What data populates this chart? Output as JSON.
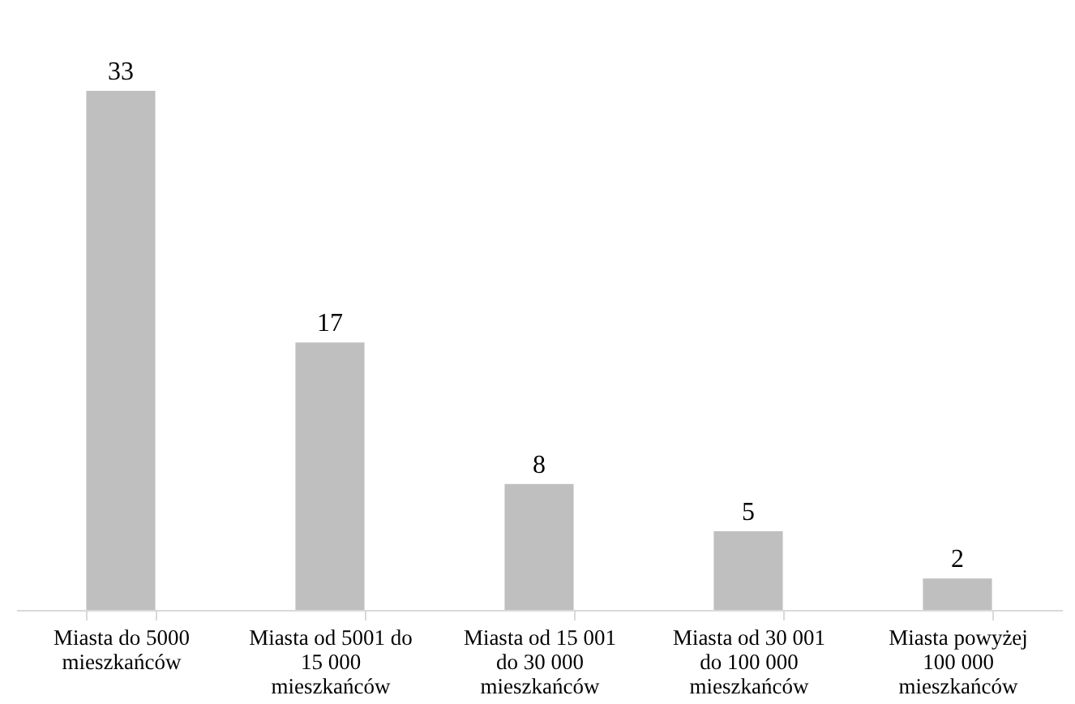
{
  "chart_data": {
    "type": "bar",
    "categories": [
      "Miasta do 5000 mieszkańców",
      "Miasta od 5001 do 15 000 mieszkańców",
      "Miasta od 15 001 do 30 000 mieszkańców",
      "Miasta od 30 001 do 100 000 mieszkańców",
      "Miasta powyżej 100 000 mieszkańców"
    ],
    "values": [
      33,
      17,
      8,
      5,
      2
    ],
    "color": "#bfbfbf",
    "data_labels": true
  }
}
